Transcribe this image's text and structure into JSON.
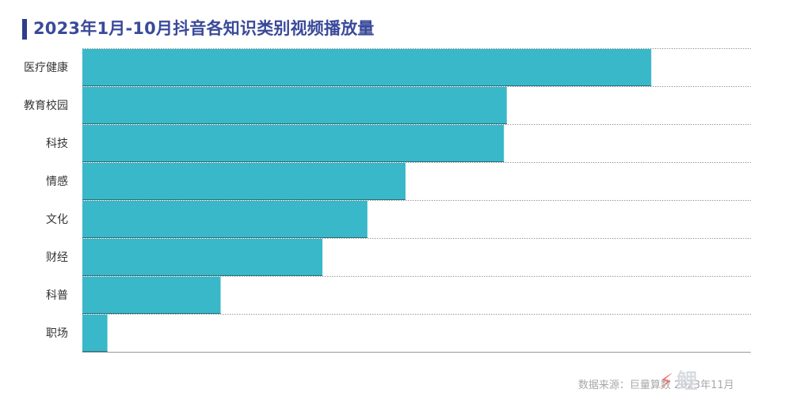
{
  "chart_data": {
    "type": "bar",
    "orientation": "horizontal",
    "title": "2023年1月-10月抖音各知识类别视频播放量",
    "categories": [
      "医疗健康",
      "教育校园",
      "科技",
      "情感",
      "文化",
      "财经",
      "科普",
      "职场"
    ],
    "values": [
      100,
      74.6,
      74.1,
      56.8,
      50.1,
      42.2,
      24.3,
      4.4
    ],
    "xlim": [
      0,
      117.5
    ],
    "grid": "horizontal",
    "legend": "none"
  },
  "colors": {
    "bar": "#38b8c8",
    "title": "#3a4a9a",
    "title_bar": "#2e3d8f",
    "label": "#333333",
    "grid": "#9a9a9a",
    "source": "#a8a8a8"
  },
  "source_text": "数据来源：巨量算数 2023年11月",
  "watermark": {
    "logo": "梅花网",
    "accent_icon": "lightning-icon"
  }
}
